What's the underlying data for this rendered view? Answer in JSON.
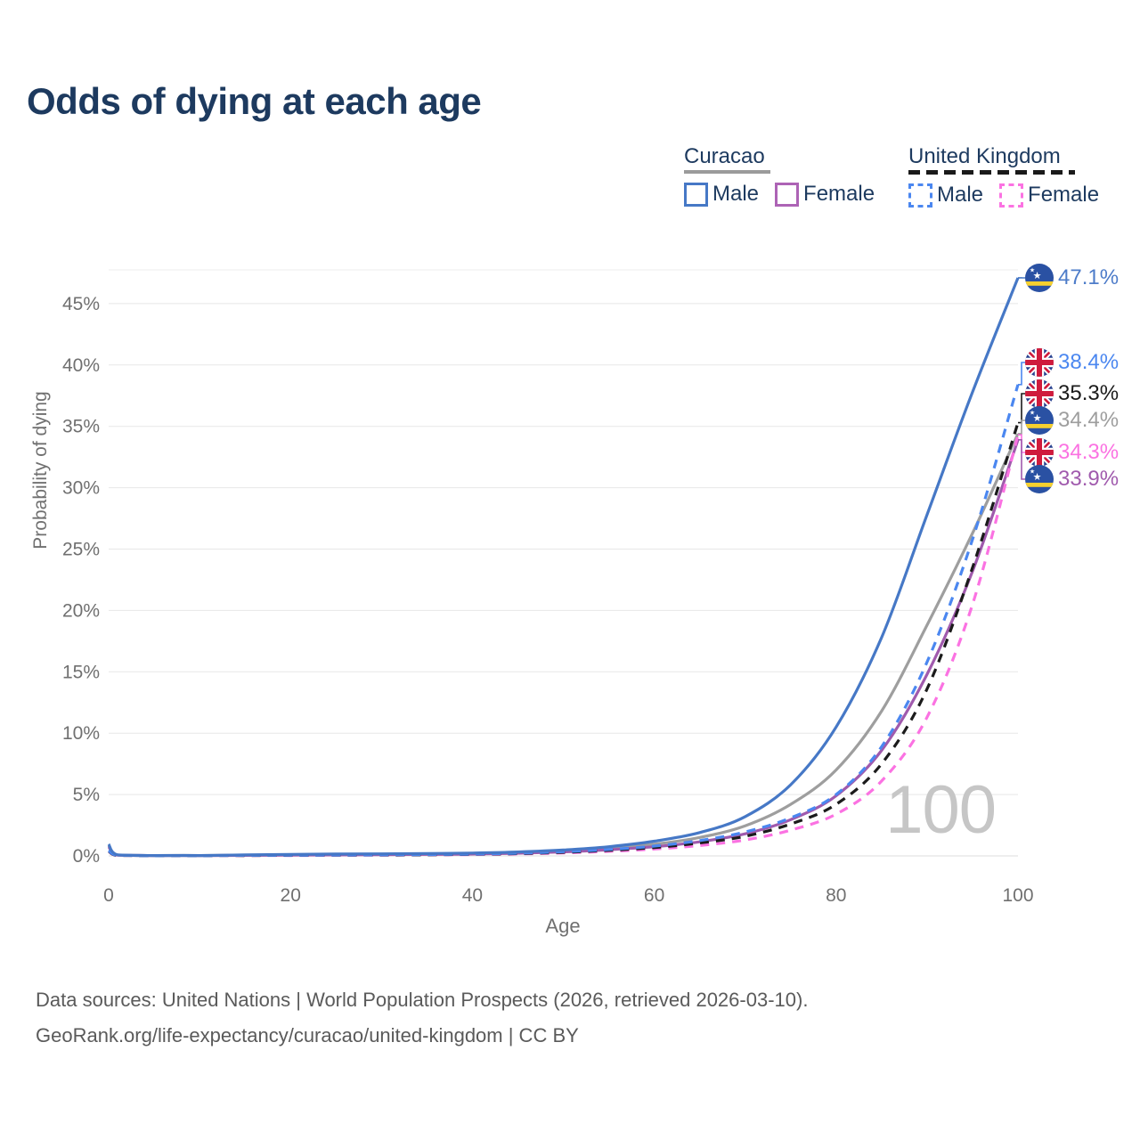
{
  "title": "Odds of dying at each age",
  "legend": {
    "groups": [
      {
        "name": "Curacao",
        "line_style": "solid",
        "underline_color": "#9b9b9b",
        "items": [
          {
            "label": "Male",
            "color": "#4678c6",
            "dashed": false
          },
          {
            "label": "Female",
            "color": "#ad63b5",
            "dashed": false
          }
        ]
      },
      {
        "name": "United Kingdom",
        "line_style": "dashed",
        "underline_color": "#1a1a1a",
        "items": [
          {
            "label": "Male",
            "color": "#4b87f0",
            "dashed": true
          },
          {
            "label": "Female",
            "color": "#fb72e2",
            "dashed": true
          }
        ]
      }
    ]
  },
  "chart_data": {
    "type": "line",
    "title": "Odds of dying at each age",
    "xlabel": "Age",
    "ylabel": "Probability of dying",
    "xlim": [
      0,
      100
    ],
    "ylim": [
      0,
      47.5
    ],
    "grid": "horizontal",
    "legend_position": "top-right",
    "hover_age_label": "100",
    "x_ticks": [
      {
        "value": 0,
        "label": "0"
      },
      {
        "value": 20,
        "label": "20"
      },
      {
        "value": 40,
        "label": "40"
      },
      {
        "value": 60,
        "label": "60"
      },
      {
        "value": 80,
        "label": "80"
      },
      {
        "value": 100,
        "label": "100"
      }
    ],
    "y_ticks": [
      {
        "value": 0,
        "label": "0%"
      },
      {
        "value": 5,
        "label": "5%"
      },
      {
        "value": 10,
        "label": "10%"
      },
      {
        "value": 15,
        "label": "15%"
      },
      {
        "value": 20,
        "label": "20%"
      },
      {
        "value": 25,
        "label": "25%"
      },
      {
        "value": 30,
        "label": "30%"
      },
      {
        "value": 35,
        "label": "35%"
      },
      {
        "value": 40,
        "label": "40%"
      },
      {
        "value": 45,
        "label": "45%"
      }
    ],
    "x": [
      0,
      1,
      5,
      10,
      15,
      20,
      25,
      30,
      35,
      40,
      45,
      50,
      55,
      60,
      65,
      70,
      75,
      80,
      85,
      90,
      95,
      100
    ],
    "series": [
      {
        "name": "Curacao Male",
        "country": "Curacao",
        "sex": "Male",
        "flag": "cw",
        "color": "#4678c6",
        "label_color": "#4d7cc9",
        "dashed": false,
        "end_label": "47.1%",
        "values": [
          0.95,
          0.08,
          0.03,
          0.03,
          0.08,
          0.12,
          0.15,
          0.17,
          0.19,
          0.23,
          0.32,
          0.48,
          0.75,
          1.2,
          1.9,
          3.2,
          5.8,
          10.5,
          17.8,
          27.8,
          37.8,
          47.1
        ]
      },
      {
        "name": "United Kingdom Male",
        "country": "United Kingdom",
        "sex": "Male",
        "flag": "uk",
        "color": "#4b87f0",
        "label_color": "#4b87f0",
        "dashed": true,
        "end_label": "38.4%",
        "values": [
          0.45,
          0.04,
          0.01,
          0.01,
          0.04,
          0.06,
          0.07,
          0.09,
          0.11,
          0.15,
          0.22,
          0.34,
          0.52,
          0.8,
          1.25,
          1.95,
          3.1,
          5.0,
          8.9,
          15.8,
          25.8,
          38.4
        ]
      },
      {
        "name": "United Kingdom Total",
        "country": "United Kingdom",
        "sex": "Total",
        "flag": "uk",
        "color": "#1b1b1b",
        "label_color": "#1b1b1b",
        "dashed": true,
        "end_label": "35.3%",
        "values": [
          0.4,
          0.03,
          0.01,
          0.01,
          0.03,
          0.05,
          0.06,
          0.07,
          0.09,
          0.13,
          0.19,
          0.29,
          0.45,
          0.68,
          1.05,
          1.6,
          2.6,
          4.2,
          7.5,
          13.6,
          23.5,
          35.3
        ]
      },
      {
        "name": "Curacao Total",
        "country": "Curacao",
        "sex": "Total",
        "flag": "cw",
        "color": "#9e9e9e",
        "label_color": "#9e9e9e",
        "dashed": false,
        "end_label": "34.4%",
        "values": [
          0.85,
          0.07,
          0.03,
          0.03,
          0.06,
          0.09,
          0.11,
          0.13,
          0.15,
          0.19,
          0.27,
          0.4,
          0.62,
          0.95,
          1.5,
          2.45,
          4.2,
          7.0,
          11.8,
          18.8,
          26.3,
          34.4
        ]
      },
      {
        "name": "United Kingdom Female",
        "country": "United Kingdom",
        "sex": "Female",
        "flag": "uk",
        "color": "#fb72e2",
        "label_color": "#fb72e2",
        "dashed": true,
        "end_label": "34.3%",
        "values": [
          0.38,
          0.03,
          0.01,
          0.01,
          0.02,
          0.03,
          0.05,
          0.06,
          0.08,
          0.11,
          0.16,
          0.24,
          0.37,
          0.56,
          0.85,
          1.3,
          2.1,
          3.4,
          6.1,
          11.3,
          20.5,
          34.3
        ]
      },
      {
        "name": "Curacao Female",
        "country": "Curacao",
        "sex": "Female",
        "flag": "cw",
        "color": "#a05aad",
        "label_color": "#a05aad",
        "dashed": false,
        "end_label": "33.9%",
        "values": [
          0.75,
          0.06,
          0.02,
          0.02,
          0.04,
          0.06,
          0.08,
          0.1,
          0.12,
          0.15,
          0.22,
          0.33,
          0.5,
          0.75,
          1.15,
          1.8,
          2.95,
          4.9,
          8.6,
          14.8,
          23.2,
          33.9
        ]
      }
    ]
  },
  "footer": {
    "line1": "Data sources: United Nations | World Population Prospects (2026, retrieved 2026-03-10).",
    "line2": "GeoRank.org/life-expectancy/curacao/united-kingdom | CC BY"
  }
}
